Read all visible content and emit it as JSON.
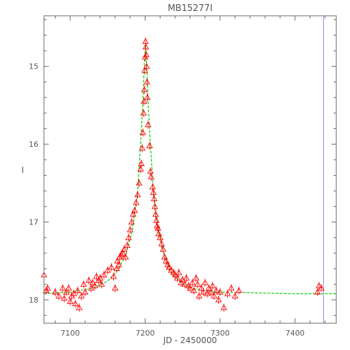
{
  "chart_data": {
    "type": "scatter",
    "title": "MB15277I",
    "xlabel": "JD - 2450000",
    "ylabel": "I",
    "xlim": [
      7065,
      7455
    ],
    "ylim": [
      18.3,
      14.35
    ],
    "y_inverted": true,
    "x_ticks": [
      7100,
      7200,
      7300,
      7400
    ],
    "y_ticks": [
      15,
      16,
      17,
      18
    ],
    "grid": false,
    "colors": {
      "points": "#ff0000",
      "model": "#00cc00",
      "marker_line": "#8888ff",
      "axes": "#666666"
    },
    "marker_line_x": 7438,
    "model_curve": {
      "t0": 7200.5,
      "x": [
        7065,
        7100,
        7130,
        7150,
        7165,
        7175,
        7183,
        7190,
        7194,
        7197,
        7199,
        7200.5,
        7202,
        7204,
        7207,
        7211,
        7218,
        7226,
        7235,
        7250,
        7270,
        7300,
        7350,
        7400,
        7455
      ],
      "y": [
        17.92,
        17.9,
        17.85,
        17.76,
        17.6,
        17.4,
        17.1,
        16.6,
        16.0,
        15.45,
        14.95,
        14.72,
        14.95,
        15.45,
        16.0,
        16.6,
        17.1,
        17.45,
        17.65,
        17.8,
        17.87,
        17.9,
        17.91,
        17.92,
        17.92
      ]
    },
    "points": [
      [
        7065,
        17.68
      ],
      [
        7068,
        17.88
      ],
      [
        7070,
        17.85
      ],
      [
        7080,
        17.9
      ],
      [
        7085,
        17.95
      ],
      [
        7090,
        17.85
      ],
      [
        7092,
        17.98
      ],
      [
        7095,
        17.9
      ],
      [
        7098,
        17.85
      ],
      [
        7100,
        18.02
      ],
      [
        7102,
        17.95
      ],
      [
        7105,
        17.92
      ],
      [
        7107,
        18.05
      ],
      [
        7110,
        17.88
      ],
      [
        7112,
        18.1
      ],
      [
        7115,
        17.95
      ],
      [
        7118,
        17.8
      ],
      [
        7120,
        17.9
      ],
      [
        7125,
        17.75
      ],
      [
        7128,
        17.85
      ],
      [
        7130,
        17.78
      ],
      [
        7133,
        17.82
      ],
      [
        7135,
        17.7
      ],
      [
        7138,
        17.75
      ],
      [
        7140,
        17.72
      ],
      [
        7142,
        17.8
      ],
      [
        7145,
        17.68
      ],
      [
        7150,
        17.62
      ],
      [
        7155,
        17.58
      ],
      [
        7158,
        17.7
      ],
      [
        7160,
        17.85
      ],
      [
        7162,
        17.6
      ],
      [
        7163,
        17.5
      ],
      [
        7165,
        17.55
      ],
      [
        7166,
        17.45
      ],
      [
        7168,
        17.42
      ],
      [
        7170,
        17.4
      ],
      [
        7172,
        17.35
      ],
      [
        7174,
        17.45
      ],
      [
        7176,
        17.3
      ],
      [
        7178,
        17.2
      ],
      [
        7180,
        17.1
      ],
      [
        7182,
        17.0
      ],
      [
        7184,
        16.9
      ],
      [
        7186,
        16.85
      ],
      [
        7188,
        16.75
      ],
      [
        7190,
        16.65
      ],
      [
        7192,
        16.5
      ],
      [
        7194,
        16.32
      ],
      [
        7195,
        16.25
      ],
      [
        7196,
        16.05
      ],
      [
        7197,
        15.85
      ],
      [
        7198,
        15.6
      ],
      [
        7198.5,
        15.45
      ],
      [
        7199,
        15.3
      ],
      [
        7199.5,
        15.05
      ],
      [
        7200,
        14.88
      ],
      [
        7200.5,
        14.68
      ],
      [
        7201,
        14.75
      ],
      [
        7201.5,
        14.85
      ],
      [
        7202,
        15.0
      ],
      [
        7202.5,
        15.2
      ],
      [
        7203,
        15.4
      ],
      [
        7204,
        15.75
      ],
      [
        7206,
        16.02
      ],
      [
        7207,
        16.35
      ],
      [
        7208,
        16.42
      ],
      [
        7210,
        16.55
      ],
      [
        7211,
        16.62
      ],
      [
        7212,
        16.7
      ],
      [
        7213,
        16.8
      ],
      [
        7214,
        16.9
      ],
      [
        7215,
        16.98
      ],
      [
        7216,
        17.05
      ],
      [
        7217,
        17.08
      ],
      [
        7218,
        17.15
      ],
      [
        7220,
        17.2
      ],
      [
        7222,
        17.28
      ],
      [
        7224,
        17.35
      ],
      [
        7226,
        17.45
      ],
      [
        7228,
        17.5
      ],
      [
        7230,
        17.55
      ],
      [
        7232,
        17.58
      ],
      [
        7235,
        17.62
      ],
      [
        7238,
        17.65
      ],
      [
        7240,
        17.68
      ],
      [
        7243,
        17.72
      ],
      [
        7245,
        17.65
      ],
      [
        7248,
        17.78
      ],
      [
        7250,
        17.74
      ],
      [
        7253,
        17.8
      ],
      [
        7255,
        17.72
      ],
      [
        7258,
        17.82
      ],
      [
        7260,
        17.85
      ],
      [
        7263,
        17.78
      ],
      [
        7265,
        17.88
      ],
      [
        7268,
        17.72
      ],
      [
        7270,
        17.8
      ],
      [
        7272,
        17.95
      ],
      [
        7275,
        17.85
      ],
      [
        7278,
        17.9
      ],
      [
        7280,
        17.78
      ],
      [
        7283,
        17.92
      ],
      [
        7285,
        17.85
      ],
      [
        7288,
        17.9
      ],
      [
        7290,
        17.82
      ],
      [
        7292,
        17.95
      ],
      [
        7295,
        17.88
      ],
      [
        7298,
        18.0
      ],
      [
        7300,
        17.9
      ],
      [
        7305,
        18.1
      ],
      [
        7310,
        17.92
      ],
      [
        7315,
        17.85
      ],
      [
        7320,
        17.95
      ],
      [
        7325,
        17.88
      ],
      [
        7430,
        17.9
      ],
      [
        7432,
        17.82
      ],
      [
        7435,
        17.85
      ]
    ]
  }
}
